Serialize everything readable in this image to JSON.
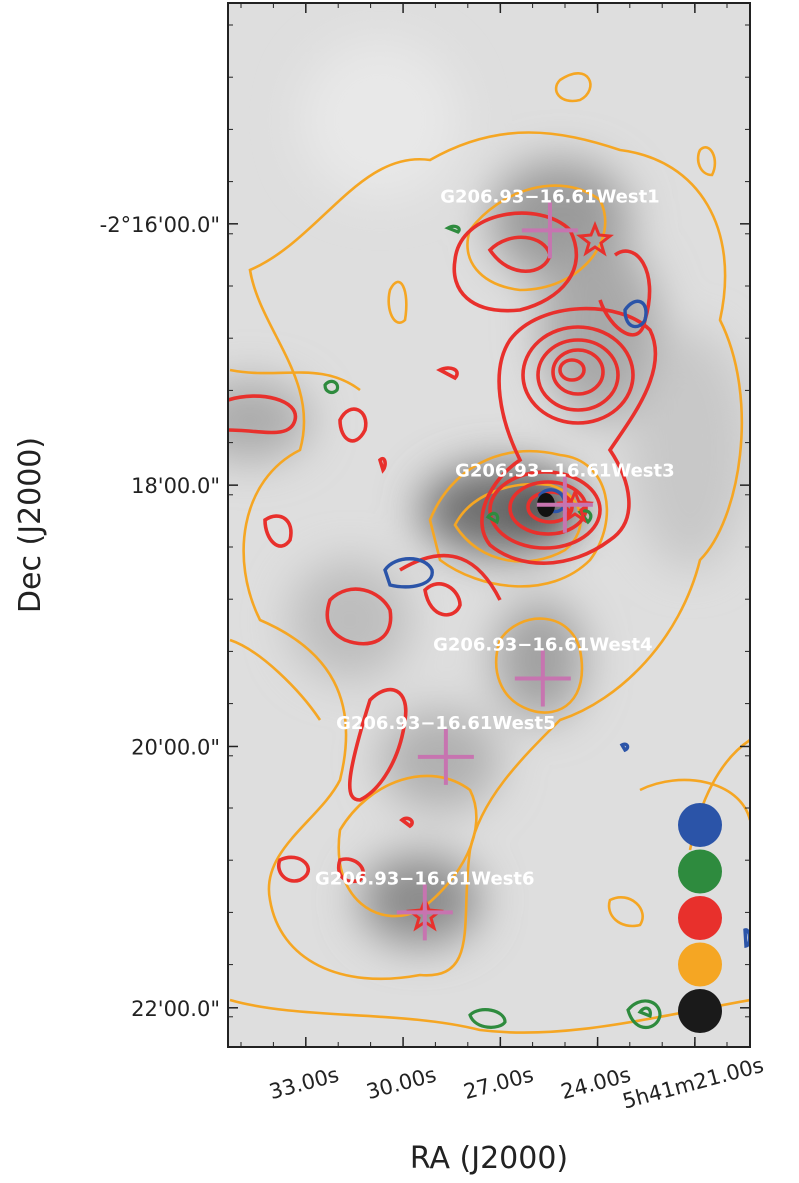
{
  "chart_data": {
    "type": "skymap",
    "xlabel": "RA (J2000)",
    "ylabel": "Dec (J2000)",
    "xlim": [
      35.4,
      19.3
    ],
    "xticks": [
      {
        "value": 33,
        "label": "33.00s"
      },
      {
        "value": 30,
        "label": "30.00s"
      },
      {
        "value": 27,
        "label": "27.00s"
      },
      {
        "value": 24,
        "label": "24.00s"
      },
      {
        "value": 21,
        "label": "5h41m21.00s"
      }
    ],
    "ylim": [
      -22.3,
      -14.31
    ],
    "yticks": [
      {
        "value": -16,
        "label": "-2°16'00.0\""
      },
      {
        "value": -18,
        "label": "18'00.0\""
      },
      {
        "value": -20,
        "label": "20'00.0\""
      },
      {
        "value": -22,
        "label": "22'00.0\""
      }
    ],
    "sources": [
      {
        "label": "G206.93−16.61West1",
        "ra": 25.47,
        "dec": -16.05
      },
      {
        "label": "G206.93−16.61West3",
        "ra": 25.01,
        "dec": -18.15
      },
      {
        "label": "G206.93−16.61West4",
        "ra": 25.69,
        "dec": -19.48
      },
      {
        "label": "G206.93−16.61West5",
        "ra": 28.68,
        "dec": -20.08
      },
      {
        "label": "G206.93−16.61West6",
        "ra": 29.33,
        "dec": -21.27
      }
    ],
    "cross_color": "#c774b0",
    "legend_colors": [
      "#2b54a8",
      "#2e8b3e",
      "#e8302c",
      "#f5a623",
      "#1a1a1a"
    ]
  }
}
